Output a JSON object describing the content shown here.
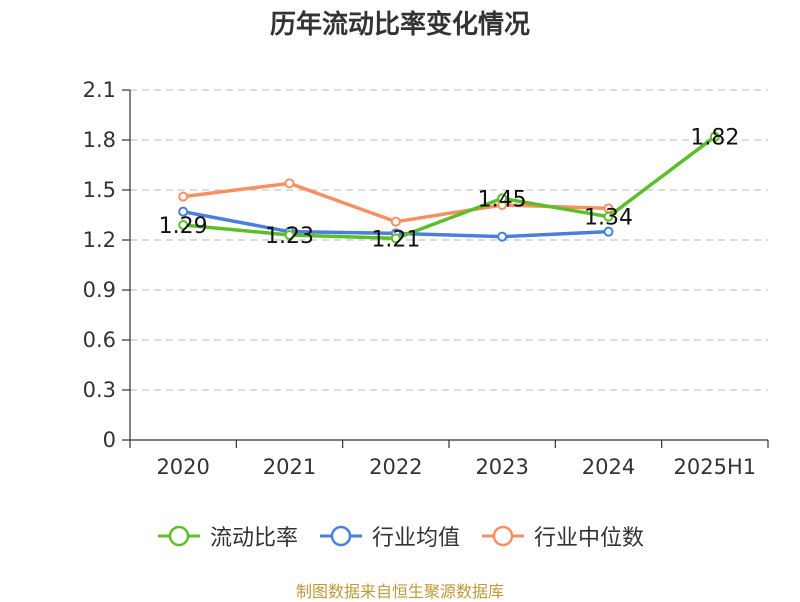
{
  "title": "历年流动比率变化情况",
  "footer": "制图数据来自恒生聚源数据库",
  "chart_data": {
    "type": "line",
    "categories": [
      "2020",
      "2021",
      "2022",
      "2023",
      "2024",
      "2025H1"
    ],
    "ylim": [
      0,
      2.1
    ],
    "yticks": [
      "0",
      "0.3",
      "0.6",
      "0.9",
      "1.2",
      "1.5",
      "1.8",
      "2.1"
    ],
    "grid": true,
    "legend_position": "bottom",
    "series": [
      {
        "name": "流动比率",
        "color": "#5cbf2a",
        "values": [
          1.29,
          1.23,
          1.21,
          1.45,
          1.34,
          1.82
        ],
        "labels": [
          "1.29",
          "1.23",
          "1.21",
          "1.45",
          "1.34",
          "1.82"
        ]
      },
      {
        "name": "行业均值",
        "color": "#4a7fdc",
        "values": [
          1.37,
          1.25,
          1.24,
          1.22,
          1.25,
          null
        ]
      },
      {
        "name": "行业中位数",
        "color": "#f59160",
        "values": [
          1.46,
          1.54,
          1.31,
          1.41,
          1.39,
          null
        ]
      }
    ]
  }
}
